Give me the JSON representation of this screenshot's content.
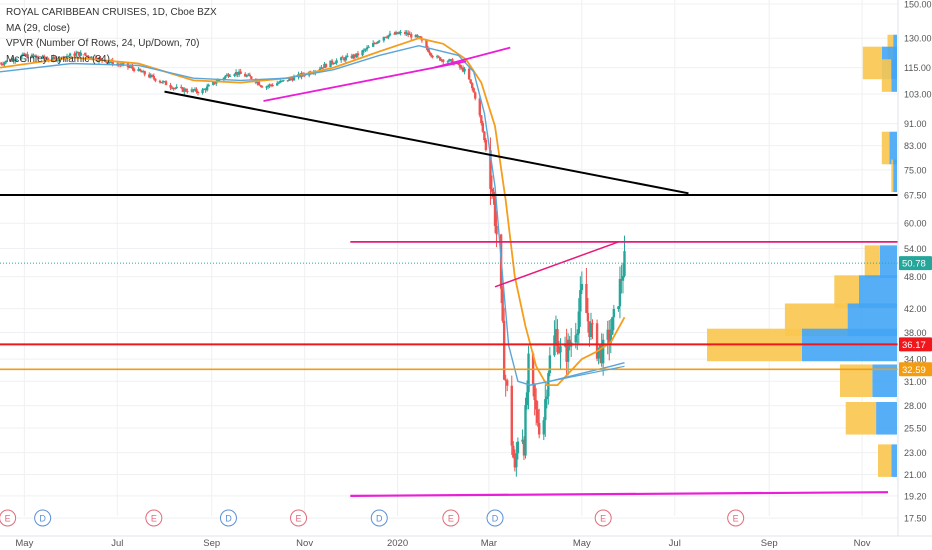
{
  "legend": {
    "title": "ROYAL CARIBBEAN CRUISES, 1D, Cboe BZX",
    "ma": "MA (29, close)",
    "vpvr": "VPVR (Number Of Rows, 24, Up/Down, 70)",
    "mcginley": "McGinley Dynamic (34)"
  },
  "colors": {
    "up": "#26a69a",
    "down": "#ef5350",
    "ma": "#f59d1c",
    "mcginley": "#5aa5d8",
    "vol_up": "#42a5f5",
    "vol_down": "#f9c74f",
    "magenta": "#e91ed6",
    "pink": "#e8197a",
    "red_line": "#f0171c",
    "orange_line": "#f39c12",
    "black_line": "#000000",
    "grid": "#eef0f3",
    "axis_text": "#555555"
  },
  "chart_data": {
    "type": "candlestick",
    "y_scale": "log",
    "ylim": [
      17.0,
      150.0
    ],
    "x_axis": {
      "start": "2019-04-15",
      "end": "2020-11-18",
      "tick_labels": [
        {
          "date": "2019-05-01",
          "label": "May"
        },
        {
          "date": "2019-07-01",
          "label": "Jul"
        },
        {
          "date": "2019-09-01",
          "label": "Sep"
        },
        {
          "date": "2019-11-01",
          "label": "Nov"
        },
        {
          "date": "2020-01-01",
          "label": "2020"
        },
        {
          "date": "2020-03-01",
          "label": "Mar"
        },
        {
          "date": "2020-05-01",
          "label": "May"
        },
        {
          "date": "2020-07-01",
          "label": "Jul"
        },
        {
          "date": "2020-09-01",
          "label": "Sep"
        },
        {
          "date": "2020-11-01",
          "label": "Nov"
        }
      ]
    },
    "y_ticks": [
      150.0,
      130.0,
      115.0,
      103.0,
      91.0,
      83.0,
      75.0,
      67.5,
      60.0,
      54.0,
      48.0,
      42.0,
      38.0,
      34.0,
      31.0,
      28.0,
      25.5,
      23.0,
      21.0,
      19.2,
      17.5
    ],
    "price_markers": [
      {
        "value": 50.78,
        "label": "50.78",
        "color": "#26a69a"
      },
      {
        "value": 36.17,
        "label": "36.17",
        "color": "#f0171c"
      },
      {
        "value": 32.59,
        "label": "32.59",
        "color": "#f39c12"
      }
    ],
    "close_path": [
      [
        "2019-04-15",
        117
      ],
      [
        "2019-05-01",
        121
      ],
      [
        "2019-05-20",
        119
      ],
      [
        "2019-06-05",
        122
      ],
      [
        "2019-06-25",
        118
      ],
      [
        "2019-07-10",
        115
      ],
      [
        "2019-07-25",
        110
      ],
      [
        "2019-08-10",
        105
      ],
      [
        "2019-08-25",
        104
      ],
      [
        "2019-09-05",
        109
      ],
      [
        "2019-09-15",
        113
      ],
      [
        "2019-09-28",
        110
      ],
      [
        "2019-10-05",
        106
      ],
      [
        "2019-10-20",
        109
      ],
      [
        "2019-11-05",
        113
      ],
      [
        "2019-11-20",
        118
      ],
      [
        "2019-12-05",
        121
      ],
      [
        "2019-12-15",
        126
      ],
      [
        "2019-12-22",
        131
      ],
      [
        "2020-01-05",
        133
      ],
      [
        "2020-01-15",
        130
      ],
      [
        "2020-01-25",
        120
      ],
      [
        "2020-02-05",
        118
      ],
      [
        "2020-02-15",
        113
      ],
      [
        "2020-02-22",
        100
      ],
      [
        "2020-02-26",
        88
      ],
      [
        "2020-03-01",
        76
      ],
      [
        "2020-03-04",
        66
      ],
      [
        "2020-03-08",
        50
      ],
      [
        "2020-03-11",
        33
      ],
      [
        "2020-03-14",
        28
      ],
      [
        "2020-03-18",
        21
      ],
      [
        "2020-03-21",
        27
      ],
      [
        "2020-03-24",
        24
      ],
      [
        "2020-03-27",
        33
      ],
      [
        "2020-04-01",
        27
      ],
      [
        "2020-04-05",
        25
      ],
      [
        "2020-04-09",
        33
      ],
      [
        "2020-04-14",
        38
      ],
      [
        "2020-04-18",
        34
      ],
      [
        "2020-04-23",
        36
      ],
      [
        "2020-04-28",
        40
      ],
      [
        "2020-05-01",
        45
      ],
      [
        "2020-05-05",
        40
      ],
      [
        "2020-05-10",
        36
      ],
      [
        "2020-05-15",
        35
      ],
      [
        "2020-05-20",
        38
      ],
      [
        "2020-05-23",
        41
      ],
      [
        "2020-05-27",
        48
      ],
      [
        "2020-05-29",
        51
      ]
    ],
    "ma29": [
      [
        "2019-04-15",
        115
      ],
      [
        "2019-06-01",
        120
      ],
      [
        "2019-07-15",
        117
      ],
      [
        "2019-08-20",
        109
      ],
      [
        "2019-09-20",
        108
      ],
      [
        "2019-10-20",
        110
      ],
      [
        "2019-11-20",
        115
      ],
      [
        "2019-12-20",
        123
      ],
      [
        "2020-01-15",
        130
      ],
      [
        "2020-01-31",
        127
      ],
      [
        "2020-02-15",
        119
      ],
      [
        "2020-02-25",
        108
      ],
      [
        "2020-03-05",
        90
      ],
      [
        "2020-03-12",
        66
      ],
      [
        "2020-03-18",
        48
      ],
      [
        "2020-03-25",
        39
      ],
      [
        "2020-04-01",
        33
      ],
      [
        "2020-04-08",
        30.5
      ],
      [
        "2020-04-15",
        30.5
      ],
      [
        "2020-04-22",
        32
      ],
      [
        "2020-05-01",
        34
      ],
      [
        "2020-05-10",
        35
      ],
      [
        "2020-05-20",
        36.5
      ],
      [
        "2020-05-29",
        40.5
      ]
    ],
    "mcginley34": [
      [
        "2019-04-15",
        113
      ],
      [
        "2019-06-01",
        117
      ],
      [
        "2019-07-15",
        116
      ],
      [
        "2019-08-20",
        110
      ],
      [
        "2019-09-20",
        109
      ],
      [
        "2019-10-20",
        110
      ],
      [
        "2019-11-20",
        114
      ],
      [
        "2019-12-20",
        121
      ],
      [
        "2020-01-15",
        126
      ],
      [
        "2020-02-10",
        121
      ],
      [
        "2020-02-20",
        113
      ],
      [
        "2020-02-27",
        95
      ],
      [
        "2020-03-05",
        70
      ],
      [
        "2020-03-10",
        48
      ],
      [
        "2020-03-14",
        36
      ],
      [
        "2020-03-20",
        31
      ],
      [
        "2020-03-28",
        30.5
      ],
      [
        "2020-04-10",
        31
      ],
      [
        "2020-04-30",
        32
      ],
      [
        "2020-05-20",
        33
      ],
      [
        "2020-05-29",
        33.5
      ]
    ],
    "horizontal_levels": [
      {
        "value": 67.5,
        "color": "black",
        "width": 2
      },
      {
        "value": 55.5,
        "color": "pink",
        "width": 1.8,
        "start": "2019-12-01"
      },
      {
        "value": 36.17,
        "color": "red_line",
        "width": 2
      },
      {
        "value": 32.59,
        "color": "orange_line",
        "width": 1.6
      }
    ],
    "trendlines": [
      {
        "from": [
          "2019-08-01",
          104
        ],
        "to": [
          "2020-07-10",
          68
        ],
        "color": "black",
        "width": 2
      },
      {
        "from": [
          "2019-10-05",
          100
        ],
        "to": [
          "2020-02-15",
          118
        ],
        "color": "magenta",
        "width": 1.8
      },
      {
        "from": [
          "2020-01-25",
          115
        ],
        "to": [
          "2020-03-15",
          125
        ],
        "color": "magenta",
        "width": 1.8
      },
      {
        "from": [
          "2020-03-05",
          46
        ],
        "to": [
          "2020-05-25",
          55.5
        ],
        "color": "pink",
        "width": 1.5
      },
      {
        "from": [
          "2020-04-10",
          31
        ],
        "to": [
          "2020-05-29",
          33
        ],
        "color": "mcginley",
        "width": 1.2
      },
      {
        "from": [
          "2019-12-01",
          19.2
        ],
        "to": [
          "2020-11-18",
          19.5
        ],
        "color": "magenta",
        "width": 2.2
      }
    ],
    "volume_profile": [
      {
        "price": 123,
        "up": 0.02,
        "down": 0.03
      },
      {
        "price": 117,
        "up": 0.08,
        "down": 0.1
      },
      {
        "price": 111,
        "up": 0.03,
        "down": 0.05
      },
      {
        "price": 82,
        "up": 0.04,
        "down": 0.04
      },
      {
        "price": 73,
        "up": 0.02,
        "down": 0.01
      },
      {
        "price": 51,
        "up": 0.09,
        "down": 0.08
      },
      {
        "price": 45,
        "up": 0.2,
        "down": 0.13
      },
      {
        "price": 40,
        "up": 0.26,
        "down": 0.33
      },
      {
        "price": 36,
        "up": 0.5,
        "down": 0.5
      },
      {
        "price": 31,
        "up": 0.13,
        "down": 0.17
      },
      {
        "price": 26.5,
        "up": 0.11,
        "down": 0.16
      },
      {
        "price": 22.2,
        "up": 0.03,
        "down": 0.07
      }
    ],
    "events": [
      {
        "date": "2019-04-20",
        "label": "E",
        "kind": "earnings"
      },
      {
        "date": "2019-05-13",
        "label": "D",
        "kind": "dividend"
      },
      {
        "date": "2019-07-25",
        "label": "E",
        "kind": "earnings"
      },
      {
        "date": "2019-09-12",
        "label": "D",
        "kind": "dividend"
      },
      {
        "date": "2019-10-28",
        "label": "E",
        "kind": "earnings"
      },
      {
        "date": "2019-12-20",
        "label": "D",
        "kind": "dividend"
      },
      {
        "date": "2020-02-05",
        "label": "E",
        "kind": "earnings"
      },
      {
        "date": "2020-03-05",
        "label": "D",
        "kind": "dividend"
      },
      {
        "date": "2020-05-15",
        "label": "E",
        "kind": "earnings"
      },
      {
        "date": "2020-08-10",
        "label": "E",
        "kind": "earnings"
      }
    ]
  }
}
